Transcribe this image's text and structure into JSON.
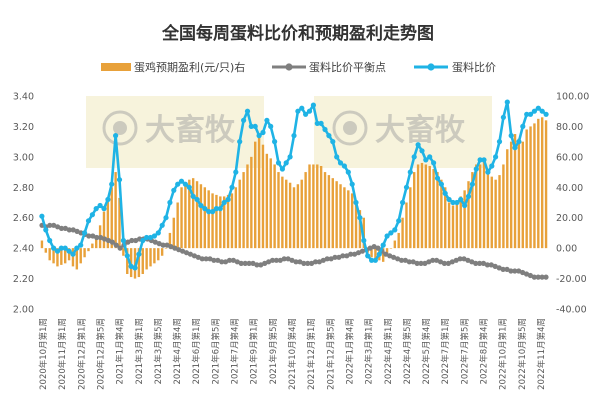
{
  "chart_data": {
    "type": "bar+line",
    "title": "全国每周蛋料比价和预期盈利走势图",
    "legend": {
      "position": "top",
      "entries": [
        "蛋鸡预期盈利(元/只)右",
        "蛋料比价平衡点",
        "蛋料比价"
      ]
    },
    "left_axis": {
      "range": [
        2.0,
        3.4
      ],
      "ticks": [
        "2.00",
        "2.20",
        "2.40",
        "2.60",
        "2.80",
        "3.00",
        "3.20",
        "3.40"
      ]
    },
    "right_axis": {
      "range": [
        -40,
        100
      ],
      "ticks": [
        "-40.00",
        "-20.00",
        "0.00",
        "20.00",
        "40.00",
        "60.00",
        "80.00",
        "100.00"
      ]
    },
    "x_labels": [
      "2020年10月第1周",
      "2020年11月第1周",
      "2020年12月第1周",
      "2020年12月第5周",
      "2021年1月第4周",
      "2021年3月第1周",
      "2021年3月第5周",
      "2021年4月第4周",
      "2021年6月第1周",
      "2021年6月第5周",
      "2021年7月第4周",
      "2021年9月第1周",
      "2021年9月第5周",
      "2021年10月第4周",
      "2021年12月第1周",
      "2021年12月第5周",
      "2022年1月第4周",
      "2022年3月第1周",
      "2022年4月第1周",
      "2022年4月第5周",
      "2022年5月第4周",
      "2022年7月第1周",
      "2022年7月第5周",
      "2022年8月第4周",
      "2022年10月第1周",
      "2022年10月第5周",
      "2022年11月第4周"
    ],
    "series": [
      {
        "name": "蛋鸡预期盈利(元/只)右",
        "kind": "bar",
        "axis": "right",
        "color": "#E8A13A",
        "values": [
          5,
          -3,
          -8,
          -10,
          -12,
          -11,
          -10,
          -8,
          -12,
          -14,
          -10,
          -6,
          -2,
          3,
          8,
          15,
          24,
          32,
          40,
          50,
          33,
          -5,
          -17,
          -19,
          -20,
          -19,
          -17,
          -14,
          -12,
          -10,
          -8,
          -5,
          0,
          10,
          20,
          30,
          40,
          42,
          45,
          46,
          44,
          42,
          40,
          38,
          36,
          35,
          34,
          34,
          35,
          36,
          40,
          45,
          50,
          55,
          60,
          70,
          75,
          68,
          62,
          59,
          55,
          50,
          47,
          45,
          43,
          40,
          42,
          45,
          50,
          55,
          55,
          55,
          54,
          50,
          48,
          46,
          44,
          42,
          40,
          38,
          36,
          30,
          25,
          20,
          -3,
          -6,
          -7,
          -8,
          -9,
          -5,
          0,
          5,
          10,
          20,
          30,
          40,
          50,
          55,
          56,
          55,
          54,
          52,
          50,
          45,
          40,
          30,
          28,
          30,
          34,
          38,
          44,
          50,
          55,
          55,
          57,
          52,
          47,
          45,
          48,
          55,
          65,
          70,
          75,
          72,
          70,
          78,
          80,
          82,
          85,
          86,
          84
        ],
        "color_note": "orange"
      },
      {
        "name": "蛋料比价平衡点",
        "kind": "line",
        "axis": "left",
        "color": "#7F7F7F",
        "values": [
          2.55,
          2.54,
          2.55,
          2.55,
          2.54,
          2.53,
          2.53,
          2.52,
          2.52,
          2.51,
          2.5,
          2.49,
          2.48,
          2.48,
          2.47,
          2.47,
          2.46,
          2.45,
          2.44,
          2.42,
          2.4,
          2.42,
          2.44,
          2.45,
          2.45,
          2.46,
          2.46,
          2.46,
          2.45,
          2.44,
          2.43,
          2.42,
          2.42,
          2.41,
          2.4,
          2.39,
          2.38,
          2.37,
          2.36,
          2.35,
          2.34,
          2.33,
          2.33,
          2.33,
          2.32,
          2.32,
          2.31,
          2.31,
          2.32,
          2.32,
          2.31,
          2.3,
          2.3,
          2.3,
          2.3,
          2.29,
          2.29,
          2.3,
          2.31,
          2.32,
          2.32,
          2.32,
          2.33,
          2.33,
          2.32,
          2.31,
          2.31,
          2.3,
          2.3,
          2.3,
          2.31,
          2.31,
          2.32,
          2.33,
          2.33,
          2.34,
          2.34,
          2.35,
          2.35,
          2.36,
          2.36,
          2.37,
          2.38,
          2.39,
          2.4,
          2.41,
          2.4,
          2.38,
          2.36,
          2.35,
          2.34,
          2.33,
          2.32,
          2.32,
          2.31,
          2.31,
          2.3,
          2.3,
          2.3,
          2.31,
          2.32,
          2.32,
          2.31,
          2.3,
          2.3,
          2.31,
          2.32,
          2.33,
          2.33,
          2.32,
          2.31,
          2.3,
          2.3,
          2.3,
          2.29,
          2.29,
          2.28,
          2.27,
          2.26,
          2.26,
          2.25,
          2.25,
          2.25,
          2.24,
          2.23,
          2.22,
          2.21,
          2.21,
          2.21,
          2.21
        ],
        "marker": "circle"
      },
      {
        "name": "蛋料比价",
        "kind": "line",
        "axis": "left",
        "color": "#1FB3E5",
        "values": [
          2.61,
          2.52,
          2.45,
          2.4,
          2.38,
          2.4,
          2.4,
          2.38,
          2.36,
          2.4,
          2.42,
          2.5,
          2.58,
          2.62,
          2.66,
          2.68,
          2.66,
          2.72,
          2.82,
          3.14,
          2.85,
          2.45,
          2.35,
          2.28,
          2.27,
          2.36,
          2.45,
          2.47,
          2.47,
          2.48,
          2.5,
          2.55,
          2.6,
          2.7,
          2.78,
          2.82,
          2.84,
          2.82,
          2.8,
          2.74,
          2.72,
          2.68,
          2.66,
          2.64,
          2.64,
          2.66,
          2.66,
          2.7,
          2.72,
          2.8,
          2.9,
          3.1,
          3.24,
          3.3,
          3.2,
          3.2,
          3.14,
          3.16,
          3.24,
          3.2,
          3.1,
          2.96,
          2.92,
          2.96,
          3.0,
          3.14,
          3.3,
          3.32,
          3.28,
          3.3,
          3.34,
          3.22,
          3.22,
          3.18,
          3.14,
          3.1,
          3.0,
          2.96,
          2.94,
          2.9,
          2.82,
          2.7,
          2.6,
          2.45,
          2.35,
          2.32,
          2.32,
          2.36,
          2.42,
          2.48,
          2.5,
          2.52,
          2.58,
          2.7,
          2.8,
          2.9,
          3.0,
          3.08,
          3.04,
          2.98,
          3.0,
          2.96,
          2.86,
          2.82,
          2.76,
          2.72,
          2.7,
          2.7,
          2.72,
          2.68,
          2.74,
          2.82,
          2.92,
          2.98,
          2.98,
          2.9,
          2.94,
          3.0,
          3.1,
          3.26,
          3.36,
          3.14,
          3.06,
          3.1,
          3.2,
          3.28,
          3.28,
          3.3,
          3.32,
          3.3,
          3.28
        ]
      }
    ]
  }
}
